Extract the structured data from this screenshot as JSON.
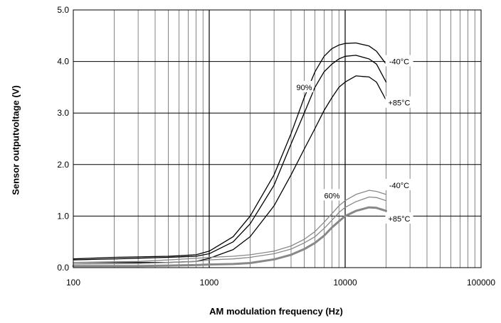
{
  "chart_data": {
    "type": "line",
    "xlabel": "AM modulation frequency (Hz)",
    "ylabel": "Sensor  outputvoltage (V)",
    "x_scale": "log",
    "xlim": [
      100,
      100000
    ],
    "ylim": [
      0,
      5
    ],
    "x_ticks": [
      "100",
      "1000",
      "10000",
      "100000"
    ],
    "y_ticks": [
      "0.0",
      "1.0",
      "2.0",
      "3.0",
      "4.0",
      "5.0"
    ],
    "grid": true,
    "annotations": [
      {
        "text": "90%",
        "x": 5000,
        "y": 3.5
      },
      {
        "text": "-40°C",
        "x": 25000,
        "y": 4.0
      },
      {
        "text": "+85°C",
        "x": 25000,
        "y": 3.2
      },
      {
        "text": "60%",
        "x": 8000,
        "y": 1.4
      },
      {
        "text": "-40°C",
        "x": 25000,
        "y": 1.6
      },
      {
        "text": "+85°C",
        "x": 25000,
        "y": 0.95
      }
    ],
    "series": [
      {
        "group": "90%",
        "color": "#000000",
        "width": 1.3,
        "x": [
          100,
          200,
          500,
          800,
          1000,
          1500,
          2000,
          3000,
          4000,
          5000,
          6000,
          7000,
          8000,
          9000,
          10000,
          12000,
          15000,
          17000,
          20000
        ],
        "y": [
          0.17,
          0.2,
          0.22,
          0.25,
          0.32,
          0.6,
          1.0,
          1.8,
          2.6,
          3.3,
          3.8,
          4.1,
          4.25,
          4.32,
          4.35,
          4.36,
          4.3,
          4.2,
          3.95
        ]
      },
      {
        "group": "90%",
        "color": "#000000",
        "width": 1.3,
        "x": [
          100,
          200,
          500,
          800,
          1000,
          1500,
          2000,
          3000,
          4000,
          5000,
          6000,
          7000,
          8000,
          9000,
          10000,
          12000,
          15000,
          17000,
          20000
        ],
        "y": [
          0.15,
          0.17,
          0.2,
          0.22,
          0.27,
          0.5,
          0.85,
          1.6,
          2.4,
          3.0,
          3.5,
          3.8,
          3.95,
          4.05,
          4.1,
          4.12,
          4.05,
          3.95,
          3.6
        ]
      },
      {
        "group": "90%",
        "color": "#000000",
        "width": 1.3,
        "x": [
          100,
          300,
          500,
          800,
          1000,
          1500,
          2000,
          3000,
          4000,
          5000,
          6000,
          7000,
          8000,
          9000,
          10000,
          12000,
          15000,
          17000,
          20000
        ],
        "y": [
          0.1,
          0.1,
          0.1,
          0.12,
          0.18,
          0.35,
          0.6,
          1.2,
          1.8,
          2.3,
          2.7,
          3.05,
          3.3,
          3.5,
          3.6,
          3.72,
          3.7,
          3.6,
          3.25
        ]
      },
      {
        "group": "60%",
        "color": "#888888",
        "width": 1.3,
        "x": [
          100,
          300,
          500,
          800,
          1000,
          1500,
          2000,
          3000,
          4000,
          5000,
          6000,
          7000,
          8000,
          9000,
          10000,
          12000,
          15000,
          17000,
          20000
        ],
        "y": [
          0.1,
          0.12,
          0.15,
          0.18,
          0.2,
          0.22,
          0.25,
          0.32,
          0.42,
          0.55,
          0.7,
          0.88,
          1.05,
          1.2,
          1.3,
          1.42,
          1.5,
          1.48,
          1.42
        ]
      },
      {
        "group": "60%",
        "color": "#888888",
        "width": 1.3,
        "x": [
          100,
          300,
          500,
          800,
          1000,
          1500,
          2000,
          3000,
          4000,
          5000,
          6000,
          7000,
          8000,
          9000,
          10000,
          12000,
          15000,
          17000,
          20000
        ],
        "y": [
          0.07,
          0.08,
          0.1,
          0.12,
          0.15,
          0.17,
          0.2,
          0.27,
          0.36,
          0.48,
          0.6,
          0.76,
          0.92,
          1.07,
          1.17,
          1.28,
          1.37,
          1.36,
          1.3
        ]
      },
      {
        "group": "60%",
        "color": "#888888",
        "width": 3,
        "x": [
          100,
          300,
          500,
          800,
          1000,
          1500,
          2000,
          3000,
          4000,
          5000,
          6000,
          7000,
          8000,
          9000,
          10000,
          12000,
          15000,
          17000,
          20000
        ],
        "y": [
          0.03,
          0.03,
          0.04,
          0.05,
          0.06,
          0.07,
          0.09,
          0.16,
          0.25,
          0.36,
          0.48,
          0.62,
          0.78,
          0.9,
          1.0,
          1.1,
          1.17,
          1.16,
          1.1
        ]
      }
    ]
  }
}
